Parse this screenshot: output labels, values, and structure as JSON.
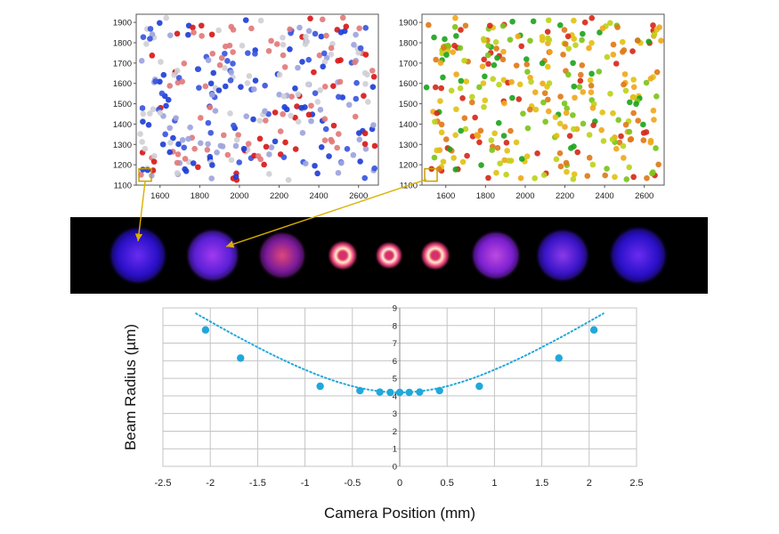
{
  "chart_data": [
    {
      "type": "scatter",
      "title": "",
      "xlabel": "",
      "ylabel": "",
      "xlim": [
        1480,
        2700
      ],
      "ylim": [
        1100,
        1940
      ],
      "x_ticks": [
        "1600",
        "1800",
        "2000",
        "2200",
        "2400",
        "2600"
      ],
      "y_ticks": [
        "1900",
        "1800",
        "1700",
        "1600",
        "1500",
        "1400",
        "1300",
        "1200",
        "1100"
      ],
      "palette": [
        "#1f3fd6",
        "#d81919",
        "#9ea4dc",
        "#e27a7a",
        "#cfcfd6",
        "#3a56e0"
      ],
      "point_count": 330,
      "highlight": {
        "x": 1525,
        "y": 1150,
        "color": "#c8a000"
      }
    },
    {
      "type": "scatter",
      "title": "",
      "xlabel": "",
      "ylabel": "",
      "xlim": [
        1480,
        2700
      ],
      "ylim": [
        1100,
        1940
      ],
      "x_ticks": [
        "1600",
        "1800",
        "2000",
        "2200",
        "2400",
        "2600"
      ],
      "y_ticks": [
        "1900",
        "1800",
        "1700",
        "1600",
        "1500",
        "1400",
        "1300",
        "1200",
        "1100"
      ],
      "palette": [
        "#1ea51e",
        "#7cc41c",
        "#bdd21a",
        "#e2c114",
        "#f0a81c",
        "#e07a1a",
        "#d62a1a"
      ],
      "point_count": 330,
      "highlight": {
        "x": 1525,
        "y": 1150,
        "color": "#c8a000"
      }
    },
    {
      "type": "scatter",
      "title": "",
      "xlabel": "Camera Position (mm)",
      "ylabel": "Beam Radius (µm)",
      "xlim": [
        -2.5,
        2.5
      ],
      "ylim": [
        0,
        9
      ],
      "x_ticks": [
        "-2.5",
        "-2",
        "-1.5",
        "-1",
        "-0.5",
        "0",
        "0.5",
        "1",
        "1.5",
        "2",
        "2.5"
      ],
      "y_ticks": [
        "0",
        "1",
        "2",
        "3",
        "4",
        "5",
        "6",
        "7",
        "8",
        "9"
      ],
      "grid": true,
      "series": [
        {
          "x": [
            -2.05,
            -1.68,
            -0.84,
            -0.42,
            -0.21,
            -0.1,
            0,
            0.1,
            0.21,
            0.42,
            0.84,
            1.68,
            2.05
          ],
          "y": [
            7.75,
            6.15,
            4.55,
            4.3,
            4.22,
            4.2,
            4.2,
            4.2,
            4.22,
            4.3,
            4.55,
            6.15,
            7.75
          ],
          "color": "#20a8dc"
        }
      ],
      "fit": {
        "x0": 0,
        "w0": 4.2,
        "x_range": [
          -2.15,
          2.15
        ],
        "color": "#20a8dc",
        "style": "dotted"
      }
    }
  ],
  "beam_profiles": [
    {
      "core": "#6a2cf0",
      "edge": "#2a10c8",
      "size": 1.0
    },
    {
      "core": "#a13af0",
      "edge": "#5a1fd6",
      "size": 0.92
    },
    {
      "core": "#e0467a",
      "edge": "#7a1a9a",
      "size": 0.82
    },
    {
      "core": "#fff0c0",
      "edge": "#d8306a",
      "size": 0.52,
      "ring": "#ff6a9a"
    },
    {
      "core": "#fff6d6",
      "edge": "#d8306a",
      "size": 0.48,
      "ring": "#ff6a9a"
    },
    {
      "core": "#fff0c0",
      "edge": "#d8306a",
      "size": 0.52,
      "ring": "#ff6a9a"
    },
    {
      "core": "#c04ae0",
      "edge": "#7a1fd0",
      "size": 0.85
    },
    {
      "core": "#8a3aea",
      "edge": "#3a14c8",
      "size": 0.92
    },
    {
      "core": "#6a2cf0",
      "edge": "#2a10c8",
      "size": 1.0
    }
  ],
  "callout_color": "#d9b000"
}
